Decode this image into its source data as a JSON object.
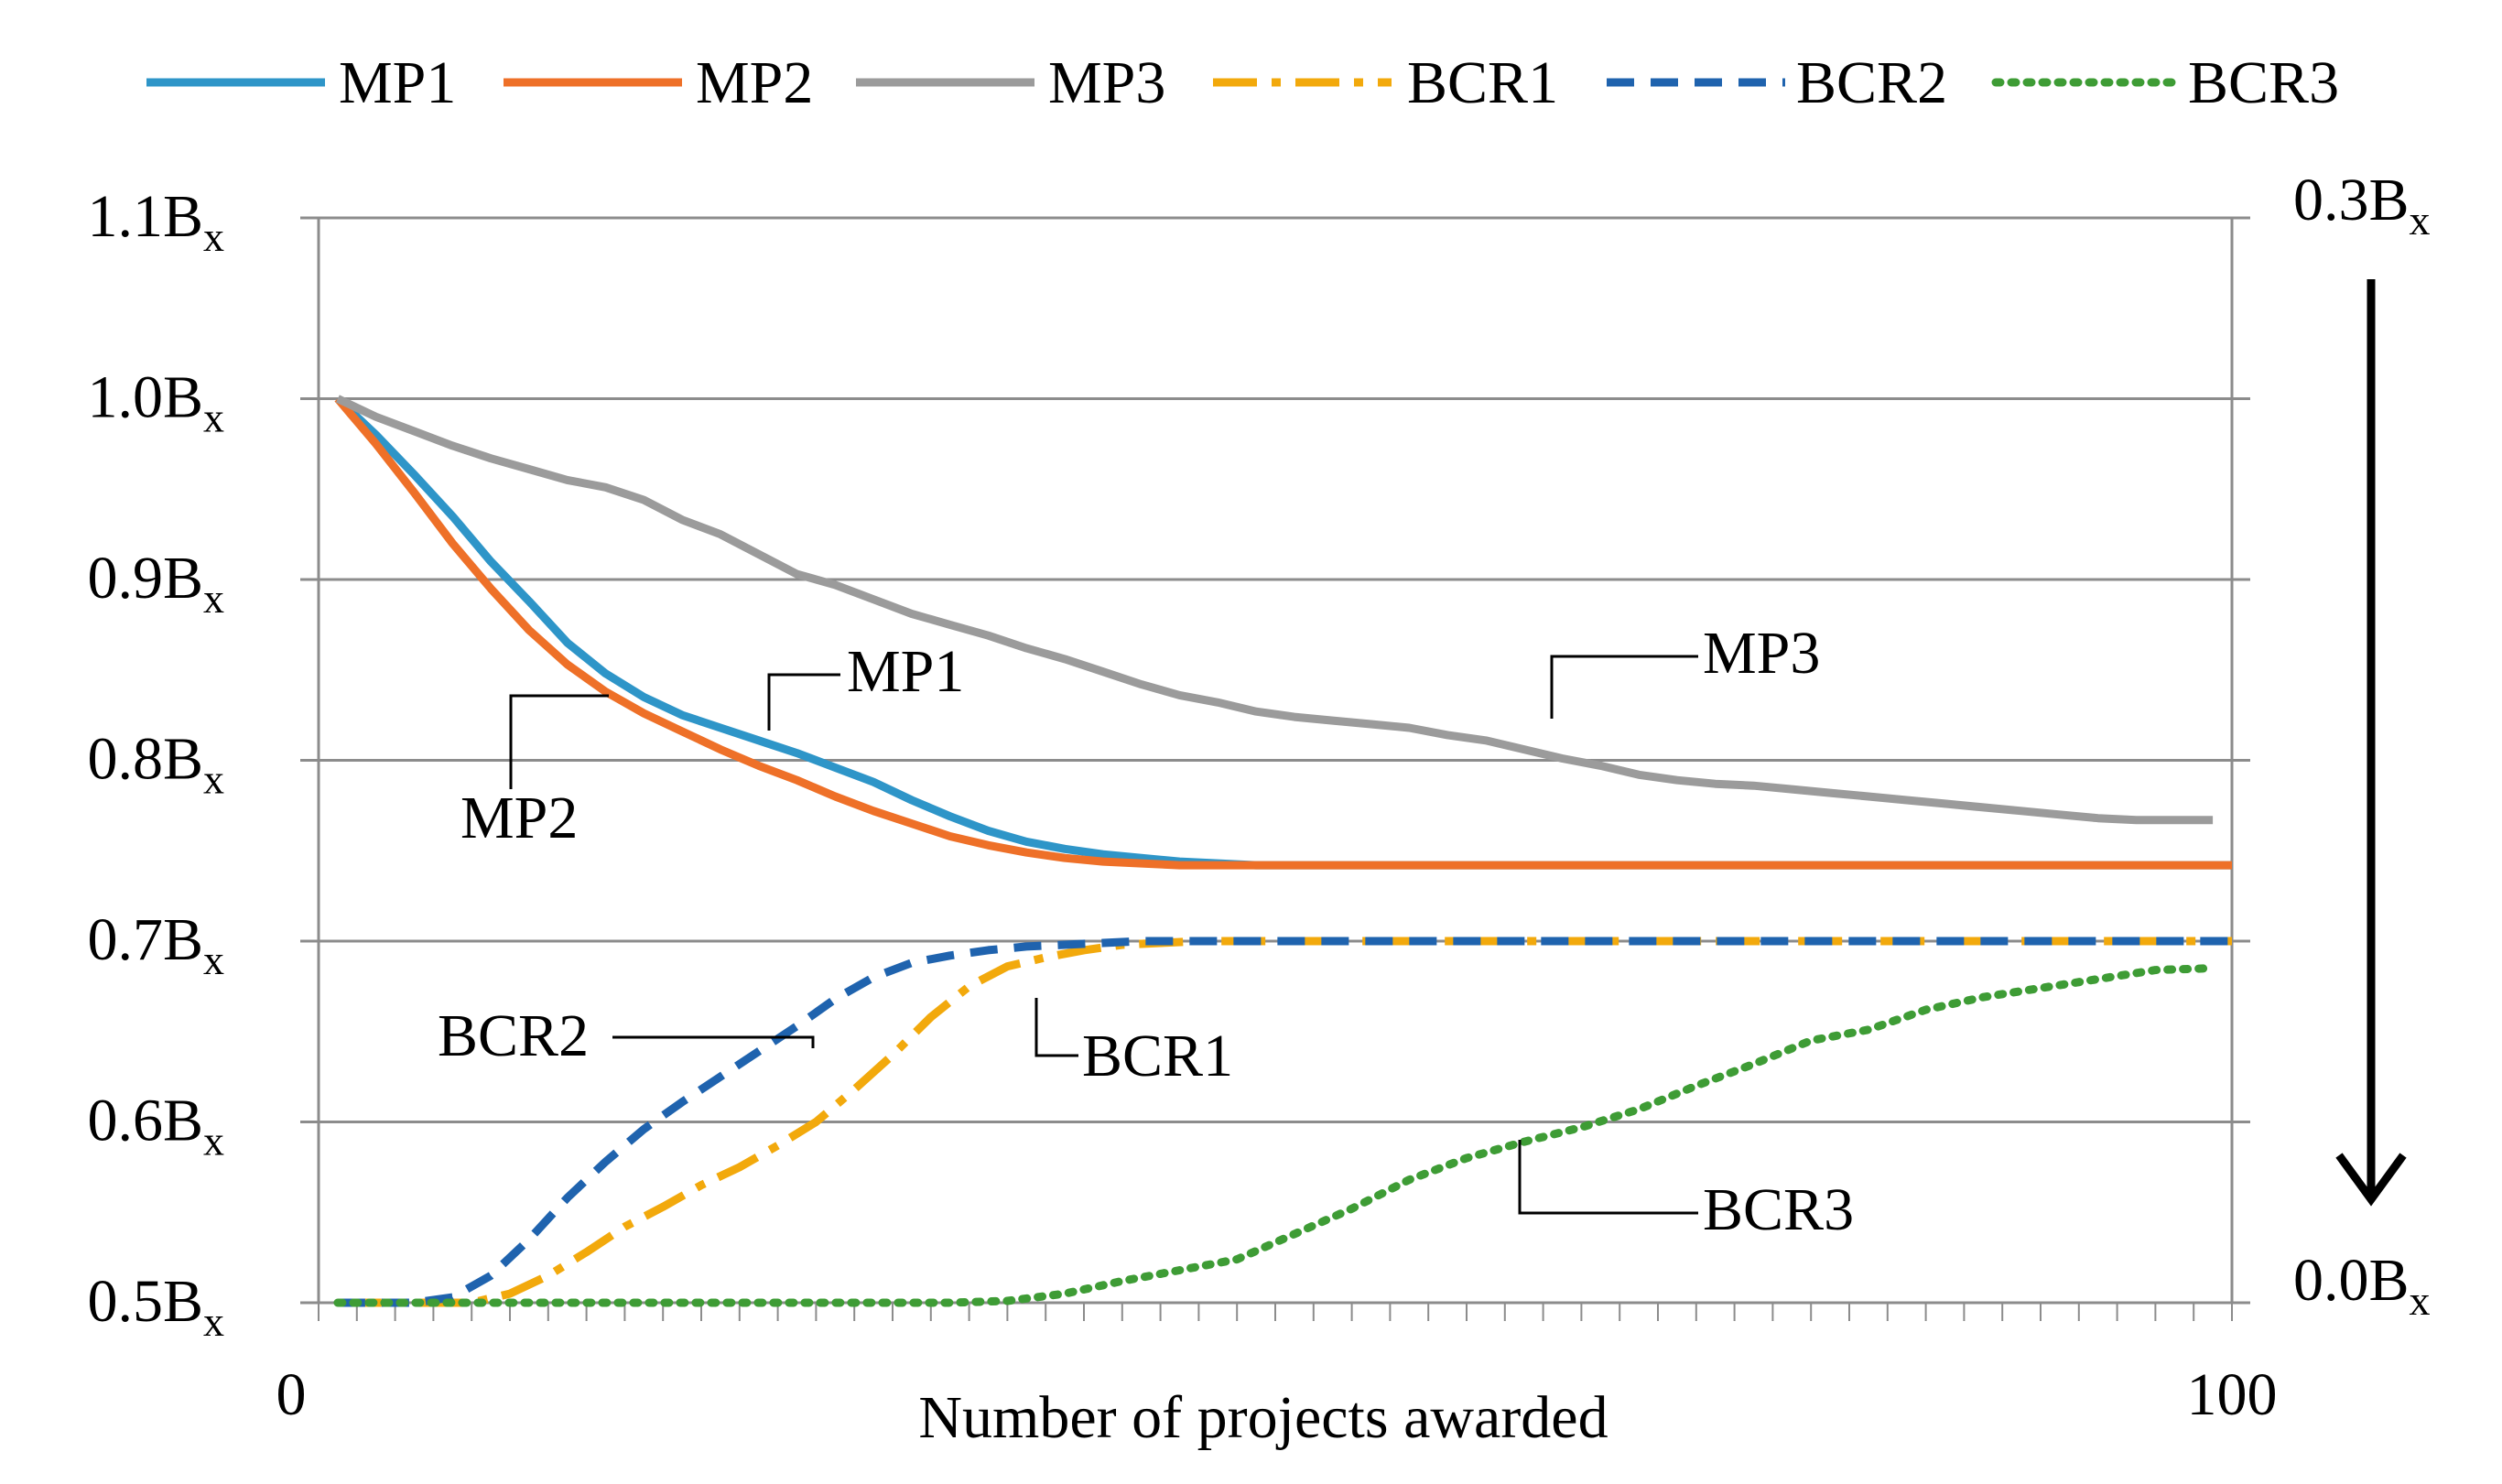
{
  "chart_data": {
    "type": "line",
    "xlabel": "Number of projects awarded",
    "xlim": [
      0,
      100
    ],
    "x_tick_labels": [
      "0",
      "100"
    ],
    "ylim": [
      0.5,
      1.1
    ],
    "y_ticks": [
      0.5,
      0.6,
      0.7,
      0.8,
      0.9,
      1.0,
      1.1
    ],
    "y_tick_labels": [
      "0.5",
      "0.6",
      "0.7",
      "0.8",
      "0.9",
      "1.0",
      "1.1"
    ],
    "y_tick_unit": "B",
    "y_tick_unit_sub": "x",
    "right_axis": {
      "top_label": "0.3",
      "bottom_label": "0.0",
      "unit": "B",
      "unit_sub": "x",
      "arrow": "down"
    },
    "grid": true,
    "legend_position": "top",
    "series": [
      {
        "name": "MP1",
        "color": "#2E95C8",
        "dash": "solid",
        "axis": "left",
        "x": [
          1,
          3,
          5,
          7,
          9,
          11,
          13,
          15,
          17,
          19,
          21,
          23,
          25,
          27,
          29,
          31,
          33,
          35,
          37,
          39,
          41,
          43,
          45,
          47,
          49,
          52,
          55,
          60,
          65,
          70,
          80,
          90,
          100
        ],
        "y": [
          1.0,
          0.98,
          0.958,
          0.935,
          0.91,
          0.888,
          0.865,
          0.848,
          0.835,
          0.825,
          0.818,
          0.811,
          0.804,
          0.796,
          0.788,
          0.778,
          0.769,
          0.761,
          0.755,
          0.751,
          0.748,
          0.746,
          0.744,
          0.743,
          0.742,
          0.742,
          0.742,
          0.742,
          0.742,
          0.742,
          0.742,
          0.742,
          0.742
        ]
      },
      {
        "name": "MP2",
        "color": "#EE7028",
        "dash": "solid",
        "axis": "left",
        "x": [
          1,
          3,
          5,
          7,
          9,
          11,
          13,
          15,
          17,
          19,
          21,
          23,
          25,
          27,
          29,
          31,
          33,
          35,
          37,
          39,
          41,
          43,
          45,
          47,
          49,
          52,
          55,
          60,
          65,
          70,
          80,
          90,
          100
        ],
        "y": [
          1.0,
          0.975,
          0.948,
          0.92,
          0.895,
          0.872,
          0.853,
          0.838,
          0.826,
          0.816,
          0.806,
          0.797,
          0.789,
          0.78,
          0.772,
          0.765,
          0.758,
          0.753,
          0.749,
          0.746,
          0.744,
          0.743,
          0.742,
          0.742,
          0.742,
          0.742,
          0.742,
          0.742,
          0.742,
          0.742,
          0.742,
          0.742,
          0.742
        ]
      },
      {
        "name": "MP3",
        "color": "#9B9B9B",
        "dash": "solid",
        "axis": "left",
        "x": [
          1,
          3,
          5,
          7,
          9,
          11,
          13,
          15,
          17,
          19,
          21,
          23,
          25,
          27,
          29,
          31,
          33,
          35,
          37,
          39,
          41,
          43,
          45,
          47,
          49,
          51,
          53,
          55,
          57,
          59,
          61,
          63,
          65,
          67,
          69,
          71,
          73,
          75,
          77,
          79,
          81,
          83,
          85,
          87,
          89,
          91,
          93,
          95,
          97,
          99
        ],
        "y": [
          1.0,
          0.99,
          0.982,
          0.974,
          0.967,
          0.961,
          0.955,
          0.951,
          0.944,
          0.933,
          0.925,
          0.914,
          0.903,
          0.897,
          0.889,
          0.881,
          0.875,
          0.869,
          0.862,
          0.856,
          0.849,
          0.842,
          0.836,
          0.832,
          0.827,
          0.824,
          0.822,
          0.82,
          0.818,
          0.814,
          0.811,
          0.806,
          0.801,
          0.797,
          0.792,
          0.789,
          0.787,
          0.786,
          0.784,
          0.782,
          0.78,
          0.778,
          0.776,
          0.774,
          0.772,
          0.77,
          0.768,
          0.767,
          0.767,
          0.767
        ]
      },
      {
        "name": "BCR1",
        "color": "#F2A90C",
        "dash": "dashdot",
        "axis": "left",
        "x": [
          1,
          5,
          8,
          10,
          12,
          14,
          16,
          18,
          20,
          22,
          24,
          26,
          28,
          30,
          32,
          34,
          36,
          38,
          40,
          42,
          44,
          46,
          48,
          50,
          55,
          60,
          65,
          70,
          80,
          90,
          100
        ],
        "y": [
          0.5,
          0.5,
          0.5,
          0.505,
          0.515,
          0.528,
          0.542,
          0.553,
          0.565,
          0.575,
          0.587,
          0.6,
          0.618,
          0.637,
          0.658,
          0.675,
          0.686,
          0.691,
          0.695,
          0.698,
          0.699,
          0.7,
          0.7,
          0.7,
          0.7,
          0.7,
          0.7,
          0.7,
          0.7,
          0.7,
          0.7
        ]
      },
      {
        "name": "BCR2",
        "color": "#1F63AE",
        "dash": "dashed",
        "axis": "left",
        "x": [
          1,
          5,
          7,
          9,
          11,
          13,
          15,
          17,
          19,
          21,
          23,
          25,
          27,
          29,
          31,
          33,
          35,
          37,
          39,
          41,
          43,
          45,
          47,
          49,
          55,
          60,
          65,
          70,
          80,
          90,
          100
        ],
        "y": [
          0.5,
          0.5,
          0.503,
          0.515,
          0.535,
          0.558,
          0.578,
          0.596,
          0.611,
          0.625,
          0.639,
          0.653,
          0.668,
          0.68,
          0.688,
          0.692,
          0.695,
          0.697,
          0.698,
          0.699,
          0.7,
          0.7,
          0.7,
          0.7,
          0.7,
          0.7,
          0.7,
          0.7,
          0.7,
          0.7,
          0.7
        ]
      },
      {
        "name": "BCR3",
        "color": "#3E9C35",
        "dash": "dotted",
        "axis": "left",
        "x": [
          1,
          5,
          10,
          15,
          20,
          25,
          28,
          30,
          33,
          36,
          39,
          42,
          45,
          48,
          51,
          54,
          57,
          60,
          63,
          66,
          69,
          72,
          75,
          78,
          81,
          84,
          87,
          90,
          93,
          96,
          99
        ],
        "y": [
          0.5,
          0.5,
          0.5,
          0.5,
          0.5,
          0.5,
          0.5,
          0.5,
          0.5,
          0.501,
          0.505,
          0.512,
          0.518,
          0.524,
          0.538,
          0.552,
          0.568,
          0.58,
          0.589,
          0.597,
          0.607,
          0.62,
          0.632,
          0.645,
          0.651,
          0.662,
          0.669,
          0.674,
          0.679,
          0.684,
          0.685
        ]
      }
    ],
    "annotations": [
      {
        "text": "MP1",
        "series": "MP1"
      },
      {
        "text": "MP2",
        "series": "MP2"
      },
      {
        "text": "MP3",
        "series": "MP3"
      },
      {
        "text": "BCR1",
        "series": "BCR1"
      },
      {
        "text": "BCR2",
        "series": "BCR2"
      },
      {
        "text": "BCR3",
        "series": "BCR3"
      }
    ]
  }
}
